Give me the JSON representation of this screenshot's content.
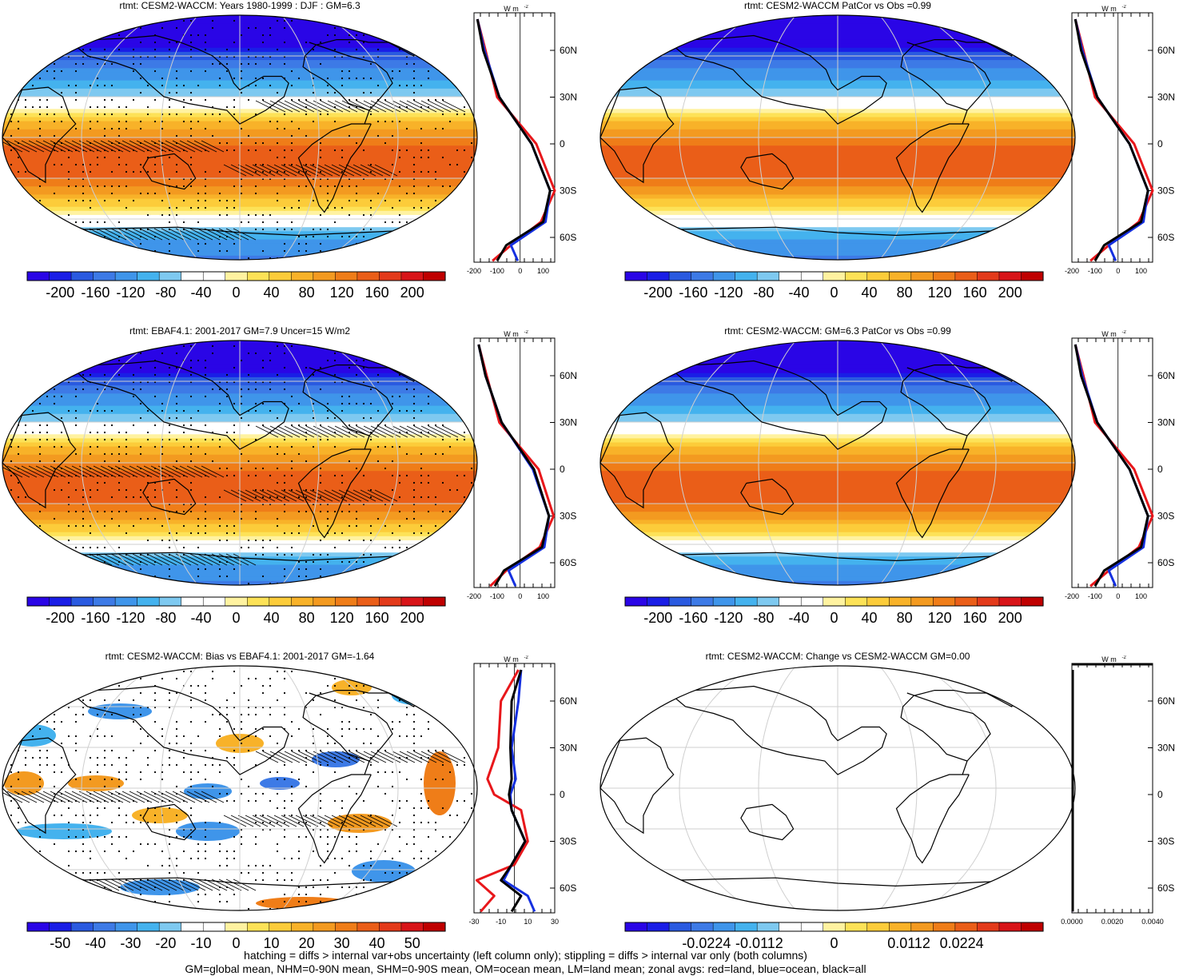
{
  "colors": {
    "land": "#e8171b",
    "ocean": "#1530e0",
    "all": "#000000",
    "palette": [
      "#2a05e6",
      "#1a1ee6",
      "#2a5ae0",
      "#3d7ae6",
      "#3f95ea",
      "#44b2ee",
      "#7ec9f0",
      "#ffffff",
      "#ffffff",
      "#fff2a0",
      "#fde257",
      "#fccc3a",
      "#f8b229",
      "#f39a20",
      "#ef7d18",
      "#ea5e18",
      "#e33a1a",
      "#d81418",
      "#bf0000"
    ]
  },
  "panels": [
    {
      "title": "rtmt: CESM2-WACCM: Years 1980-1999 : DJF : GM=6.3",
      "cbar_labels": [
        "-200",
        "-160",
        "-120",
        "-80",
        "-40",
        "0",
        "40",
        "80",
        "120",
        "160",
        "200"
      ],
      "zonal_x_ticks": [
        "-200",
        "-100",
        "0",
        "100"
      ],
      "hatch": true,
      "stipple": true,
      "kind": "mean"
    },
    {
      "title": "rtmt: CESM2-WACCM PatCor vs Obs =0.99",
      "cbar_labels": [
        "-200",
        "-160",
        "-120",
        "-80",
        "-40",
        "0",
        "40",
        "80",
        "120",
        "160",
        "200"
      ],
      "zonal_x_ticks": [
        "-200",
        "-100",
        "0",
        "100"
      ],
      "hatch": false,
      "stipple": false,
      "kind": "mean"
    },
    {
      "title": "rtmt: EBAF4.1: 2001-2017 GM=7.9 Uncer=15 W/m2",
      "cbar_labels": [
        "-200",
        "-160",
        "-120",
        "-80",
        "-40",
        "0",
        "40",
        "80",
        "120",
        "160",
        "200"
      ],
      "zonal_x_ticks": [
        "-200",
        "-100",
        "0",
        "100"
      ],
      "hatch": true,
      "stipple": true,
      "kind": "mean"
    },
    {
      "title": "rtmt: CESM2-WACCM: GM=6.3 PatCor vs Obs =0.99",
      "cbar_labels": [
        "-200",
        "-160",
        "-120",
        "-80",
        "-40",
        "0",
        "40",
        "80",
        "120",
        "160",
        "200"
      ],
      "zonal_x_ticks": [
        "-200",
        "-100",
        "0",
        "100"
      ],
      "hatch": false,
      "stipple": false,
      "kind": "mean"
    },
    {
      "title": "rtmt: CESM2-WACCM: Bias vs EBAF4.1: 2001-2017 GM=-1.64",
      "cbar_labels": [
        "-50",
        "-40",
        "-30",
        "-20",
        "-10",
        "0",
        "10",
        "20",
        "30",
        "40",
        "50"
      ],
      "zonal_x_ticks": [
        "-30",
        "-10",
        "10",
        "30"
      ],
      "hatch": true,
      "stipple": true,
      "kind": "bias"
    },
    {
      "title": "rtmt: CESM2-WACCM: Change vs CESM2-WACCM GM=0.00",
      "cbar_labels": [
        "-0.0224",
        "-0.0112",
        "0",
        "0.0112",
        "0.0224"
      ],
      "zonal_x_ticks": [
        "0.0000",
        "0.0020",
        "0.0040"
      ],
      "hatch": false,
      "stipple": false,
      "kind": "blank"
    }
  ],
  "zonal_units": "W m",
  "zonal_units_sup": "-2",
  "lat_labels": [
    "60N",
    "30N",
    "0",
    "30S",
    "60S"
  ],
  "footer": {
    "line1": "hatching = diffs > internal var+obs uncertainty (left column only); stippling = diffs > internal var only (both columns)",
    "line2": "GM=global mean, NHM=0-90N mean, SHM=0-90S mean, OM=ocean mean, LM=land mean; zonal avgs: red=land, blue=ocean, black=all"
  },
  "chart_data": [
    {
      "type": "heatmap",
      "title": "rtmt: CESM2-WACCM: Years 1980-1999 : DJF : GM=6.3",
      "colorbar_range": [
        -200,
        200
      ],
      "zonal_profile": {
        "lat": [
          80,
          60,
          30,
          0,
          -30,
          -50,
          -65,
          -75
        ],
        "all": [
          -185,
          -160,
          -90,
          50,
          130,
          100,
          -60,
          -100
        ],
        "land": [
          -185,
          -150,
          -100,
          70,
          150,
          90,
          -40,
          -120
        ],
        "ocean": [
          -185,
          -155,
          -90,
          50,
          130,
          110,
          -40,
          -10
        ]
      }
    },
    {
      "type": "heatmap",
      "title": "rtmt: CESM2-WACCM PatCor vs Obs =0.99",
      "colorbar_range": [
        -200,
        200
      ],
      "zonal_profile": {
        "lat": [
          80,
          60,
          30,
          0,
          -30,
          -50,
          -65,
          -75
        ],
        "all": [
          -185,
          -160,
          -90,
          50,
          130,
          100,
          -60,
          -100
        ],
        "land": [
          -185,
          -150,
          -100,
          70,
          150,
          90,
          -40,
          -120
        ],
        "ocean": [
          -185,
          -155,
          -90,
          50,
          130,
          110,
          -40,
          -10
        ]
      }
    },
    {
      "type": "heatmap",
      "title": "rtmt: EBAF4.1: 2001-2017 GM=7.9 Uncer=15 W/m2",
      "colorbar_range": [
        -200,
        200
      ],
      "zonal_profile": {
        "lat": [
          80,
          60,
          30,
          0,
          -30,
          -50,
          -65,
          -75
        ],
        "all": [
          -180,
          -150,
          -80,
          60,
          125,
          95,
          -70,
          -110
        ],
        "land": [
          -180,
          -145,
          -90,
          80,
          145,
          85,
          -60,
          -130
        ],
        "ocean": [
          -180,
          -150,
          -80,
          55,
          125,
          105,
          -50,
          -20
        ]
      }
    },
    {
      "type": "heatmap",
      "title": "rtmt: CESM2-WACCM: GM=6.3 PatCor vs Obs =0.99",
      "colorbar_range": [
        -200,
        200
      ],
      "zonal_profile": {
        "lat": [
          80,
          60,
          30,
          0,
          -30,
          -50,
          -65,
          -75
        ],
        "all": [
          -185,
          -160,
          -90,
          50,
          130,
          100,
          -60,
          -100
        ],
        "land": [
          -185,
          -150,
          -100,
          70,
          150,
          90,
          -40,
          -120
        ],
        "ocean": [
          -185,
          -155,
          -90,
          50,
          130,
          110,
          -40,
          -10
        ]
      }
    },
    {
      "type": "heatmap",
      "title": "rtmt: CESM2-WACCM: Bias vs EBAF4.1: 2001-2017 GM=-1.64",
      "colorbar_range": [
        -50,
        50
      ],
      "zonal_profile": {
        "lat": [
          80,
          60,
          30,
          10,
          0,
          -10,
          -30,
          -45,
          -55,
          -65,
          -75
        ],
        "all": [
          5,
          -2,
          -3,
          -2,
          -4,
          -2,
          8,
          -2,
          -10,
          5,
          -2
        ],
        "land": [
          3,
          -10,
          -12,
          -20,
          -15,
          5,
          10,
          0,
          -28,
          -15,
          -25
        ],
        "ocean": [
          5,
          3,
          -2,
          1,
          -3,
          -2,
          8,
          -2,
          -8,
          10,
          15
        ]
      }
    },
    {
      "type": "heatmap",
      "title": "rtmt: CESM2-WACCM: Change vs CESM2-WACCM GM=0.00",
      "colorbar_range": [
        -0.0224,
        0.0224
      ],
      "zonal_profile": {
        "lat": [
          80,
          60,
          30,
          0,
          -30,
          -60,
          -75
        ],
        "all": [
          0,
          0,
          0,
          0,
          0,
          0,
          0
        ],
        "land": [
          0,
          0,
          0,
          0,
          0,
          0,
          0
        ],
        "ocean": [
          0,
          0,
          0,
          0,
          0,
          0,
          0
        ]
      }
    }
  ]
}
